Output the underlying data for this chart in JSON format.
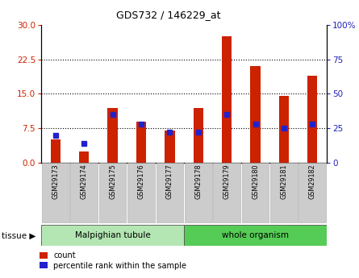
{
  "title": "GDS732 / 146229_at",
  "samples": [
    "GSM29173",
    "GSM29174",
    "GSM29175",
    "GSM29176",
    "GSM29177",
    "GSM29178",
    "GSM29179",
    "GSM29180",
    "GSM29181",
    "GSM29182"
  ],
  "counts": [
    5.0,
    2.5,
    12.0,
    9.0,
    7.0,
    12.0,
    27.5,
    21.0,
    14.5,
    19.0
  ],
  "percentiles": [
    20,
    14,
    35,
    28,
    22,
    22,
    35,
    28,
    25,
    28
  ],
  "left_ylim": [
    0,
    30
  ],
  "right_ylim": [
    0,
    100
  ],
  "left_yticks": [
    0,
    7.5,
    15,
    22.5,
    30
  ],
  "right_yticks": [
    0,
    25,
    50,
    75,
    100
  ],
  "right_yticklabels": [
    "0",
    "25",
    "50",
    "75",
    "100%"
  ],
  "tissue_groups": [
    {
      "label": "Malpighian tubule",
      "start": 0,
      "end": 5,
      "color": "#b3e6b3"
    },
    {
      "label": "whole organism",
      "start": 5,
      "end": 10,
      "color": "#55cc55"
    }
  ],
  "bar_color": "#cc2200",
  "dot_color": "#2222cc",
  "bar_width": 0.35,
  "legend_count_label": "count",
  "legend_pct_label": "percentile rank within the sample",
  "tissue_label": "tissue",
  "left_tick_color": "#cc2200",
  "right_tick_color": "#2222bb",
  "hgrid_vals": [
    7.5,
    15,
    22.5
  ],
  "figsize": [
    4.45,
    3.45
  ],
  "dpi": 100
}
